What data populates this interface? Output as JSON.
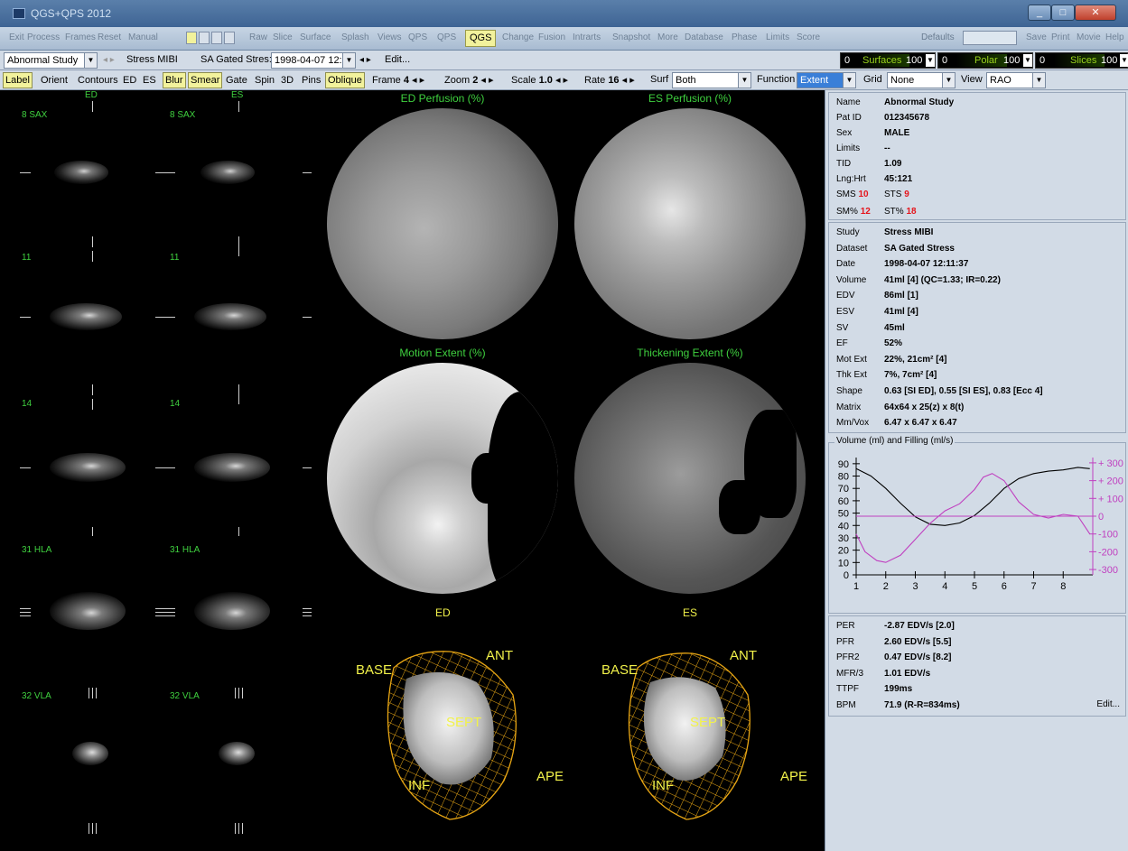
{
  "window": {
    "title": "QGS+QPS 2012",
    "min": "_",
    "max": "□",
    "close": "✕"
  },
  "menu": {
    "items": [
      "Exit",
      "Process",
      "Frames",
      "Reset",
      "Manual",
      "",
      "",
      "",
      "Raw",
      "Slice",
      "Surface",
      "Splash",
      "Views",
      "QPS",
      "QPS",
      "QGS",
      "Change",
      "Fusion",
      "Intrarts",
      "Snapshot",
      "More",
      "Database",
      "Phase",
      "Limits",
      "Score"
    ],
    "qgs": "QGS",
    "defaults": "Defaults",
    "right": [
      "Save",
      "Print",
      "Movie",
      "Help"
    ]
  },
  "row1": {
    "study": "Abnormal Study",
    "tracer": "Stress MIBI",
    "dataset": "SA Gated Stres:",
    "datetime": "1998-04-07 12:",
    "edit": "Edit...",
    "sliders": [
      {
        "lo": "0",
        "name": "Surfaces",
        "val": "100"
      },
      {
        "lo": "0",
        "name": "Polar",
        "val": "100"
      },
      {
        "lo": "0",
        "name": "Slices",
        "val": "100"
      }
    ]
  },
  "row2": {
    "toggles": [
      {
        "label": "Label",
        "on": true
      },
      {
        "label": "Orient",
        "on": false
      },
      {
        "label": "Contours",
        "on": false
      },
      {
        "label": "ED",
        "on": false
      },
      {
        "label": "ES",
        "on": false
      },
      {
        "label": "Blur",
        "on": true
      },
      {
        "label": "Smear",
        "on": true
      },
      {
        "label": "Gate",
        "on": false
      },
      {
        "label": "Spin",
        "on": false
      },
      {
        "label": "3D",
        "on": false
      },
      {
        "label": "Pins",
        "on": false
      },
      {
        "label": "Oblique",
        "on": true
      }
    ],
    "frame": {
      "label": "Frame",
      "value": "4"
    },
    "zoom": {
      "label": "Zoom",
      "value": "2"
    },
    "scale": {
      "label": "Scale",
      "value": "1.0"
    },
    "rate": {
      "label": "Rate",
      "value": "16"
    },
    "surf": {
      "label": "Surf",
      "value": "Both"
    },
    "function": {
      "label": "Function",
      "value": "Extent"
    },
    "grid": {
      "label": "Grid",
      "value": "None"
    },
    "view": {
      "label": "View",
      "value": "RAO"
    }
  },
  "slices": {
    "col_headers": [
      "ED",
      "ES"
    ],
    "labels": [
      "8 SAX",
      "11",
      "14",
      "31 HLA",
      "32 VLA"
    ]
  },
  "polar": {
    "titles": [
      "ED Perfusion (%)",
      "ES Perfusion (%)",
      "Motion Extent (%)",
      "Thickening Extent (%)"
    ],
    "bottom_labels": [
      "ED",
      "ES"
    ]
  },
  "surfaces": {
    "labels": [
      "BASE",
      "ANT",
      "SEPT",
      "INF",
      "APE"
    ]
  },
  "patient": [
    {
      "k": "Name",
      "v": "Abnormal Study"
    },
    {
      "k": "Pat ID",
      "v": "012345678"
    },
    {
      "k": "Sex",
      "v": "MALE"
    },
    {
      "k": "Limits",
      "v": "--"
    },
    {
      "k": "TID",
      "v": "1.09"
    },
    {
      "k": "Lng:Hrt",
      "v": "45:121"
    }
  ],
  "scores": {
    "sms_label": "SMS",
    "sms": "10",
    "sts_label": "STS",
    "sts": "9",
    "smp_label": "SM%",
    "smp": "12",
    "stp_label": "ST%",
    "stp": "18"
  },
  "study": [
    {
      "k": "Study",
      "v": "Stress MIBI"
    },
    {
      "k": "Dataset",
      "v": "SA Gated Stress"
    },
    {
      "k": "Date",
      "v": "1998-04-07 12:11:37"
    },
    {
      "k": "Volume",
      "v": "41ml [4] (QC=1.33; IR=0.22)"
    },
    {
      "k": "EDV",
      "v": "86ml [1]"
    },
    {
      "k": "ESV",
      "v": "41ml [4]"
    },
    {
      "k": "SV",
      "v": "45ml"
    },
    {
      "k": "EF",
      "v": "52%"
    },
    {
      "k": "Mot Ext",
      "v": "22%, 21cm² [4]"
    },
    {
      "k": "Thk Ext",
      "v": "7%, 7cm² [4]"
    },
    {
      "k": "Shape",
      "v": "0.63 [SI ED],  0.55 [SI ES],  0.83 [Ecc 4]"
    },
    {
      "k": "Matrix",
      "v": "64x64 x 25(z) x 8(t)"
    },
    {
      "k": "Mm/Vox",
      "v": "6.47 x 6.47 x 6.47"
    }
  ],
  "chart_data": {
    "type": "line",
    "title": "Volume (ml) and Filling (ml/s)",
    "x_ticks": [
      1,
      2,
      3,
      4,
      5,
      6,
      7,
      8
    ],
    "xlim": [
      1,
      9
    ],
    "y_left_ticks": [
      0,
      10,
      20,
      30,
      40,
      50,
      60,
      70,
      80,
      90
    ],
    "ylim_left": [
      0,
      95
    ],
    "y_right_ticks": [
      300,
      200,
      100,
      0,
      -100,
      -200,
      -300
    ],
    "ylim_right": [
      -330,
      330
    ],
    "series": [
      {
        "color": "#000000",
        "axis": "left",
        "x": [
          1,
          1.5,
          2,
          2.5,
          3,
          3.5,
          4,
          4.5,
          5,
          5.5,
          6,
          6.5,
          7,
          7.5,
          8,
          8.5,
          8.9
        ],
        "y": [
          86,
          80,
          70,
          58,
          47,
          41,
          40,
          42,
          48,
          58,
          70,
          78,
          82,
          84,
          85,
          87,
          86
        ]
      },
      {
        "color": "#c040c0",
        "axis": "right",
        "x": [
          1,
          1.3,
          1.7,
          2,
          2.5,
          3,
          3.5,
          4,
          4.5,
          5,
          5.3,
          5.6,
          6,
          6.5,
          7,
          7.5,
          8,
          8.5,
          8.9
        ],
        "y": [
          -100,
          -200,
          -250,
          -260,
          -220,
          -130,
          -40,
          30,
          70,
          150,
          220,
          240,
          200,
          80,
          10,
          -10,
          10,
          0,
          -100
        ]
      },
      {
        "color": "#c040c0",
        "axis": "right",
        "x": [
          1,
          9
        ],
        "y": [
          0,
          0
        ]
      }
    ]
  },
  "filling": [
    {
      "k": "PER",
      "v": "-2.87 EDV/s [2.0]"
    },
    {
      "k": "PFR",
      "v": "2.60 EDV/s [5.5]"
    },
    {
      "k": "PFR2",
      "v": "0.47 EDV/s [8.2]"
    },
    {
      "k": "MFR/3",
      "v": "1.01 EDV/s"
    },
    {
      "k": "TTPF",
      "v": "199ms"
    },
    {
      "k": "BPM",
      "v": "71.9 (R-R=834ms)"
    }
  ],
  "edit2": "Edit..."
}
